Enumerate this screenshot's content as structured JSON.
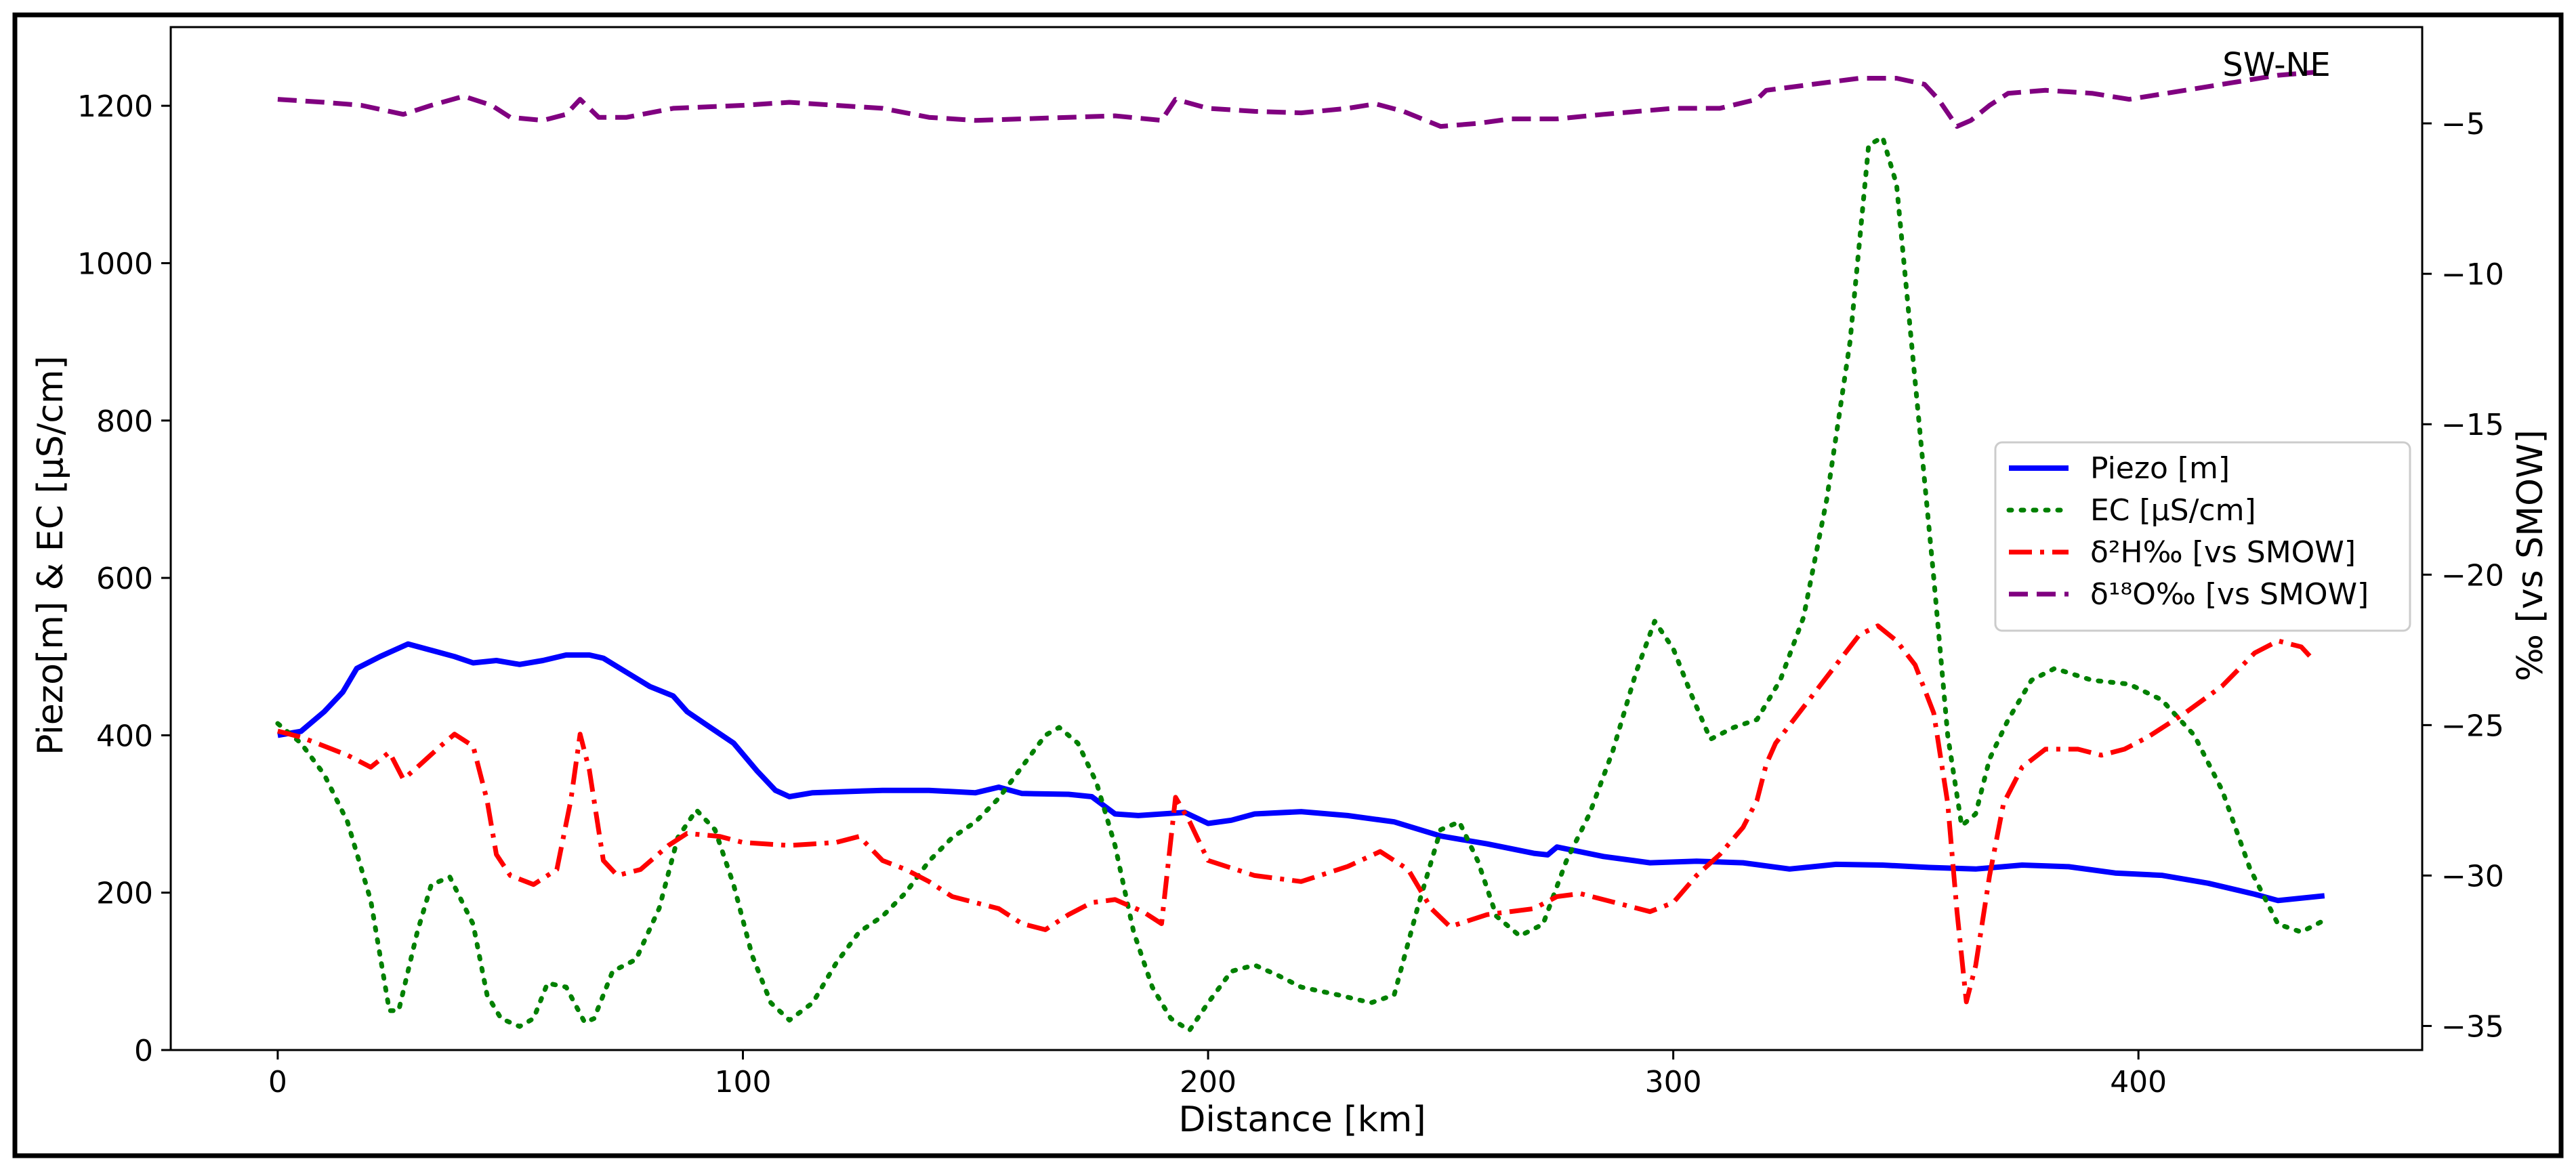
{
  "chart_data": {
    "type": "line",
    "annotation": "SW-NE",
    "xlabel": "Distance [km]",
    "ylabel_left": "Piezo[m] & EC [µS/cm]",
    "ylabel_right": "‰ [vs SMOW]",
    "xlim": [
      -23,
      461
    ],
    "ylim_left": [
      0,
      1300
    ],
    "ylim_right": [
      -35.8,
      -1.8
    ],
    "xticks": [
      0,
      100,
      200,
      300,
      400
    ],
    "yticks_left": [
      0,
      200,
      400,
      600,
      800,
      1000,
      1200
    ],
    "yticks_right": [
      -35,
      -30,
      -25,
      -20,
      -15,
      -10,
      -5
    ],
    "legend_position": "center-right",
    "grid": false,
    "series": [
      {
        "name": "Piezo [m]",
        "axis": "left",
        "color": "#0000ff",
        "style": "solid",
        "points": [
          [
            0,
            400
          ],
          [
            5,
            405
          ],
          [
            10,
            430
          ],
          [
            14,
            455
          ],
          [
            17,
            485
          ],
          [
            22,
            500
          ],
          [
            25,
            508
          ],
          [
            28,
            516
          ],
          [
            33,
            508
          ],
          [
            38,
            500
          ],
          [
            42,
            492
          ],
          [
            47,
            495
          ],
          [
            52,
            490
          ],
          [
            57,
            495
          ],
          [
            62,
            502
          ],
          [
            67,
            502
          ],
          [
            70,
            498
          ],
          [
            75,
            480
          ],
          [
            80,
            462
          ],
          [
            85,
            450
          ],
          [
            88,
            430
          ],
          [
            93,
            410
          ],
          [
            98,
            390
          ],
          [
            103,
            355
          ],
          [
            107,
            330
          ],
          [
            110,
            322
          ],
          [
            115,
            327
          ],
          [
            120,
            328
          ],
          [
            130,
            330
          ],
          [
            140,
            330
          ],
          [
            150,
            327
          ],
          [
            155,
            334
          ],
          [
            160,
            326
          ],
          [
            170,
            325
          ],
          [
            175,
            322
          ],
          [
            180,
            300
          ],
          [
            185,
            298
          ],
          [
            195,
            302
          ],
          [
            200,
            288
          ],
          [
            205,
            292
          ],
          [
            210,
            300
          ],
          [
            220,
            303
          ],
          [
            230,
            298
          ],
          [
            240,
            290
          ],
          [
            250,
            272
          ],
          [
            260,
            262
          ],
          [
            270,
            250
          ],
          [
            273,
            248
          ],
          [
            275,
            258
          ],
          [
            285,
            246
          ],
          [
            295,
            238
          ],
          [
            305,
            240
          ],
          [
            315,
            238
          ],
          [
            325,
            230
          ],
          [
            335,
            236
          ],
          [
            345,
            235
          ],
          [
            355,
            232
          ],
          [
            365,
            230
          ],
          [
            375,
            235
          ],
          [
            385,
            233
          ],
          [
            395,
            225
          ],
          [
            405,
            222
          ],
          [
            415,
            212
          ],
          [
            425,
            198
          ],
          [
            430,
            190
          ],
          [
            440,
            196
          ]
        ]
      },
      {
        "name": "EC [µS/cm]",
        "axis": "left",
        "color": "#008000",
        "style": "dotted",
        "points": [
          [
            0,
            415
          ],
          [
            5,
            390
          ],
          [
            10,
            350
          ],
          [
            15,
            290
          ],
          [
            20,
            190
          ],
          [
            24,
            50
          ],
          [
            26,
            50
          ],
          [
            30,
            150
          ],
          [
            33,
            210
          ],
          [
            37,
            220
          ],
          [
            42,
            160
          ],
          [
            45,
            70
          ],
          [
            48,
            40
          ],
          [
            52,
            30
          ],
          [
            55,
            40
          ],
          [
            58,
            85
          ],
          [
            62,
            80
          ],
          [
            66,
            35
          ],
          [
            68,
            40
          ],
          [
            72,
            100
          ],
          [
            77,
            115
          ],
          [
            82,
            180
          ],
          [
            86,
            270
          ],
          [
            90,
            305
          ],
          [
            94,
            280
          ],
          [
            98,
            210
          ],
          [
            102,
            120
          ],
          [
            106,
            60
          ],
          [
            110,
            38
          ],
          [
            115,
            60
          ],
          [
            120,
            110
          ],
          [
            125,
            150
          ],
          [
            130,
            170
          ],
          [
            135,
            200
          ],
          [
            140,
            240
          ],
          [
            145,
            270
          ],
          [
            150,
            290
          ],
          [
            155,
            320
          ],
          [
            160,
            360
          ],
          [
            165,
            400
          ],
          [
            168,
            410
          ],
          [
            172,
            390
          ],
          [
            176,
            340
          ],
          [
            180,
            260
          ],
          [
            184,
            150
          ],
          [
            188,
            80
          ],
          [
            192,
            40
          ],
          [
            196,
            25
          ],
          [
            200,
            60
          ],
          [
            205,
            100
          ],
          [
            210,
            108
          ],
          [
            215,
            95
          ],
          [
            220,
            80
          ],
          [
            228,
            70
          ],
          [
            235,
            60
          ],
          [
            240,
            70
          ],
          [
            245,
            180
          ],
          [
            250,
            280
          ],
          [
            254,
            290
          ],
          [
            258,
            240
          ],
          [
            262,
            170
          ],
          [
            267,
            145
          ],
          [
            272,
            160
          ],
          [
            277,
            240
          ],
          [
            282,
            300
          ],
          [
            287,
            380
          ],
          [
            292,
            480
          ],
          [
            296,
            545
          ],
          [
            300,
            510
          ],
          [
            304,
            450
          ],
          [
            308,
            395
          ],
          [
            313,
            410
          ],
          [
            318,
            420
          ],
          [
            323,
            470
          ],
          [
            328,
            550
          ],
          [
            333,
            700
          ],
          [
            338,
            900
          ],
          [
            342,
            1150
          ],
          [
            345,
            1160
          ],
          [
            348,
            1100
          ],
          [
            352,
            850
          ],
          [
            356,
            600
          ],
          [
            359,
            400
          ],
          [
            362,
            285
          ],
          [
            365,
            300
          ],
          [
            368,
            370
          ],
          [
            372,
            420
          ],
          [
            377,
            470
          ],
          [
            382,
            485
          ],
          [
            390,
            470
          ],
          [
            398,
            465
          ],
          [
            405,
            445
          ],
          [
            412,
            400
          ],
          [
            418,
            330
          ],
          [
            424,
            230
          ],
          [
            430,
            160
          ],
          [
            435,
            150
          ],
          [
            440,
            165
          ]
        ]
      },
      {
        "name": "δ²H‰ [vs SMOW]",
        "axis": "right",
        "color": "#ff0000",
        "style": "dashdot",
        "points": [
          [
            0,
            -25.2
          ],
          [
            5,
            -25.4
          ],
          [
            10,
            -25.7
          ],
          [
            15,
            -26.0
          ],
          [
            20,
            -26.4
          ],
          [
            24,
            -25.9
          ],
          [
            27,
            -26.8
          ],
          [
            30,
            -26.4
          ],
          [
            35,
            -25.7
          ],
          [
            38,
            -25.3
          ],
          [
            42,
            -25.7
          ],
          [
            45,
            -27.5
          ],
          [
            47,
            -29.3
          ],
          [
            50,
            -30.0
          ],
          [
            55,
            -30.3
          ],
          [
            60,
            -29.8
          ],
          [
            63,
            -27.5
          ],
          [
            65,
            -25.3
          ],
          [
            67,
            -26.5
          ],
          [
            70,
            -29.5
          ],
          [
            73,
            -30.0
          ],
          [
            78,
            -29.8
          ],
          [
            84,
            -29.0
          ],
          [
            88,
            -28.6
          ],
          [
            95,
            -28.7
          ],
          [
            100,
            -28.9
          ],
          [
            110,
            -29.0
          ],
          [
            120,
            -28.9
          ],
          [
            125,
            -28.7
          ],
          [
            130,
            -29.5
          ],
          [
            135,
            -29.8
          ],
          [
            140,
            -30.2
          ],
          [
            145,
            -30.7
          ],
          [
            150,
            -30.9
          ],
          [
            155,
            -31.1
          ],
          [
            160,
            -31.6
          ],
          [
            165,
            -31.8
          ],
          [
            170,
            -31.3
          ],
          [
            175,
            -30.9
          ],
          [
            180,
            -30.8
          ],
          [
            186,
            -31.2
          ],
          [
            190,
            -31.6
          ],
          [
            193,
            -27.4
          ],
          [
            196,
            -28.2
          ],
          [
            200,
            -29.5
          ],
          [
            210,
            -30.0
          ],
          [
            220,
            -30.2
          ],
          [
            230,
            -29.7
          ],
          [
            237,
            -29.2
          ],
          [
            243,
            -29.8
          ],
          [
            248,
            -31.1
          ],
          [
            252,
            -31.7
          ],
          [
            260,
            -31.3
          ],
          [
            270,
            -31.1
          ],
          [
            275,
            -30.7
          ],
          [
            280,
            -30.6
          ],
          [
            290,
            -31.0
          ],
          [
            295,
            -31.2
          ],
          [
            300,
            -30.9
          ],
          [
            305,
            -30.0
          ],
          [
            310,
            -29.3
          ],
          [
            315,
            -28.4
          ],
          [
            318,
            -27.5
          ],
          [
            320,
            -26.3
          ],
          [
            322,
            -25.6
          ],
          [
            325,
            -25.0
          ],
          [
            330,
            -24.0
          ],
          [
            335,
            -23.0
          ],
          [
            340,
            -22.0
          ],
          [
            344,
            -21.7
          ],
          [
            348,
            -22.2
          ],
          [
            352,
            -23.0
          ],
          [
            356,
            -24.6
          ],
          [
            359,
            -27.6
          ],
          [
            361,
            -31.2
          ],
          [
            363,
            -34.2
          ],
          [
            365,
            -33.0
          ],
          [
            368,
            -30.0
          ],
          [
            371,
            -27.6
          ],
          [
            375,
            -26.4
          ],
          [
            380,
            -25.8
          ],
          [
            387,
            -25.8
          ],
          [
            392,
            -26.0
          ],
          [
            397,
            -25.8
          ],
          [
            402,
            -25.4
          ],
          [
            410,
            -24.6
          ],
          [
            418,
            -23.7
          ],
          [
            425,
            -22.6
          ],
          [
            430,
            -22.2
          ],
          [
            435,
            -22.4
          ],
          [
            438,
            -22.9
          ]
        ]
      },
      {
        "name": "δ¹⁸O‰ [vs SMOW]",
        "axis": "right",
        "color": "#800080",
        "style": "dashed",
        "points": [
          [
            0,
            -4.2
          ],
          [
            10,
            -4.3
          ],
          [
            18,
            -4.4
          ],
          [
            27,
            -4.7
          ],
          [
            33,
            -4.4
          ],
          [
            40,
            -4.1
          ],
          [
            46,
            -4.4
          ],
          [
            50,
            -4.8
          ],
          [
            57,
            -4.9
          ],
          [
            62,
            -4.7
          ],
          [
            65,
            -4.2
          ],
          [
            69,
            -4.8
          ],
          [
            75,
            -4.8
          ],
          [
            85,
            -4.5
          ],
          [
            100,
            -4.4
          ],
          [
            110,
            -4.3
          ],
          [
            120,
            -4.4
          ],
          [
            130,
            -4.5
          ],
          [
            140,
            -4.8
          ],
          [
            150,
            -4.9
          ],
          [
            160,
            -4.85
          ],
          [
            170,
            -4.8
          ],
          [
            180,
            -4.75
          ],
          [
            190,
            -4.9
          ],
          [
            193,
            -4.2
          ],
          [
            200,
            -4.5
          ],
          [
            210,
            -4.6
          ],
          [
            220,
            -4.65
          ],
          [
            230,
            -4.5
          ],
          [
            236,
            -4.35
          ],
          [
            242,
            -4.6
          ],
          [
            250,
            -5.1
          ],
          [
            258,
            -5.0
          ],
          [
            265,
            -4.85
          ],
          [
            275,
            -4.85
          ],
          [
            285,
            -4.7
          ],
          [
            300,
            -4.5
          ],
          [
            310,
            -4.5
          ],
          [
            318,
            -4.2
          ],
          [
            320,
            -3.9
          ],
          [
            330,
            -3.7
          ],
          [
            340,
            -3.5
          ],
          [
            348,
            -3.5
          ],
          [
            354,
            -3.7
          ],
          [
            357,
            -4.2
          ],
          [
            361,
            -5.1
          ],
          [
            364,
            -4.9
          ],
          [
            368,
            -4.4
          ],
          [
            372,
            -4.0
          ],
          [
            380,
            -3.9
          ],
          [
            390,
            -4.0
          ],
          [
            398,
            -4.2
          ],
          [
            410,
            -3.9
          ],
          [
            420,
            -3.65
          ],
          [
            430,
            -3.4
          ],
          [
            438,
            -3.3
          ]
        ]
      }
    ]
  }
}
